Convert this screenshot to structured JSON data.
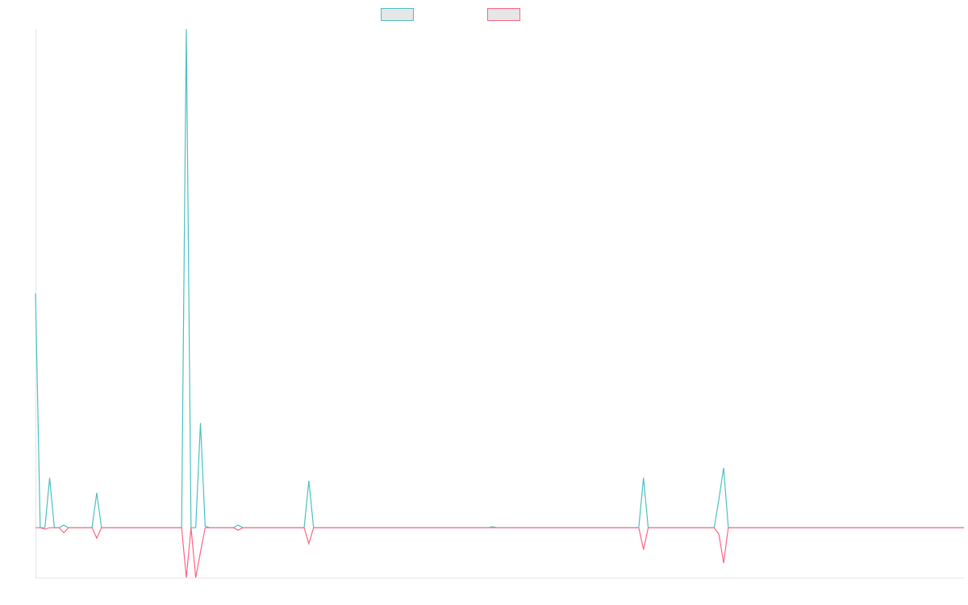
{
  "chart_data": {
    "type": "line",
    "ylim": [
      -10,
      100
    ],
    "series": [
      {
        "color": "#4bc0c0",
        "values": [
          47,
          0,
          0,
          10,
          0,
          0,
          0.5,
          0,
          0,
          0,
          0,
          0,
          0,
          7,
          0,
          0,
          0,
          0,
          0,
          0,
          0,
          0,
          0,
          0,
          0,
          0,
          0,
          0,
          0,
          0,
          0,
          0,
          100,
          0,
          0,
          21,
          0.3,
          0,
          0,
          0,
          0,
          0,
          0,
          0.5,
          0,
          0,
          0,
          0,
          0,
          0,
          0,
          0,
          0,
          0,
          0,
          0,
          0,
          0,
          9.4,
          0,
          0,
          0,
          0,
          0,
          0,
          0,
          0,
          0,
          0,
          0,
          0,
          0,
          0,
          0,
          0,
          0,
          0,
          0,
          0,
          0,
          0,
          0,
          0,
          0,
          0,
          0,
          0,
          0,
          0,
          0,
          0,
          0,
          0,
          0,
          0,
          0,
          0,
          0.2,
          0,
          0,
          0,
          0,
          0,
          0,
          0,
          0,
          0,
          0,
          0,
          0,
          0,
          0,
          0,
          0,
          0,
          0,
          0,
          0,
          0,
          0,
          0,
          0,
          0,
          0,
          0,
          0,
          0,
          0,
          0,
          10,
          0,
          0,
          0,
          0,
          0,
          0,
          0,
          0,
          0,
          0,
          0,
          0,
          0,
          0,
          0,
          5.7,
          12,
          0,
          0,
          0,
          0,
          0,
          0,
          0,
          0,
          0,
          0,
          0,
          0,
          0,
          0,
          0,
          0,
          0,
          0,
          0,
          0,
          0,
          0,
          0,
          0,
          0,
          0,
          0,
          0,
          0,
          0,
          0,
          0,
          0,
          0,
          0,
          0,
          0,
          0,
          0,
          0,
          0,
          0,
          0,
          0,
          0,
          0,
          0,
          0,
          0,
          0,
          0
        ]
      },
      {
        "color": "#ff6384",
        "values": [
          0,
          0,
          -0.3,
          0,
          0,
          0,
          -1,
          0,
          0,
          0,
          0,
          0,
          0,
          -2.1,
          0,
          0,
          0,
          0,
          0,
          0,
          0,
          0,
          0,
          0,
          0,
          0,
          0,
          0,
          0,
          0,
          0,
          0,
          -10,
          0,
          -10,
          -4.9,
          0,
          0,
          0,
          0,
          0,
          0,
          0,
          -0.5,
          0,
          0,
          0,
          0,
          0,
          0,
          0,
          0,
          0,
          0,
          0,
          0,
          0,
          0,
          -3.2,
          0,
          0,
          0,
          0,
          0,
          0,
          0,
          0,
          0,
          0,
          0,
          0,
          0,
          0,
          0,
          0,
          0,
          0,
          0,
          0,
          0,
          0,
          0,
          0,
          0,
          0,
          0,
          0,
          0,
          0,
          0,
          0,
          0,
          0,
          0,
          0,
          0,
          0,
          0,
          0,
          0,
          0,
          0,
          0,
          0,
          0,
          0,
          0,
          0,
          0,
          0,
          0,
          0,
          0,
          0,
          0,
          0,
          0,
          0,
          0,
          0,
          0,
          0,
          0,
          0,
          0,
          0,
          0,
          0,
          0,
          -4.4,
          0,
          0,
          0,
          0,
          0,
          0,
          0,
          0,
          0,
          0,
          0,
          0,
          0,
          0,
          0,
          -1.3,
          -7.1,
          0,
          0,
          0,
          0,
          0,
          0,
          0,
          0,
          0,
          0,
          0,
          0,
          0,
          0,
          0,
          0,
          0,
          0,
          0,
          0,
          0,
          0,
          0,
          0,
          0,
          0,
          0,
          0,
          0,
          0,
          0,
          0,
          0,
          0,
          0,
          0,
          0,
          0,
          0,
          0,
          0,
          0,
          0,
          0,
          0,
          0,
          0,
          0,
          0,
          0,
          0
        ]
      }
    ]
  }
}
